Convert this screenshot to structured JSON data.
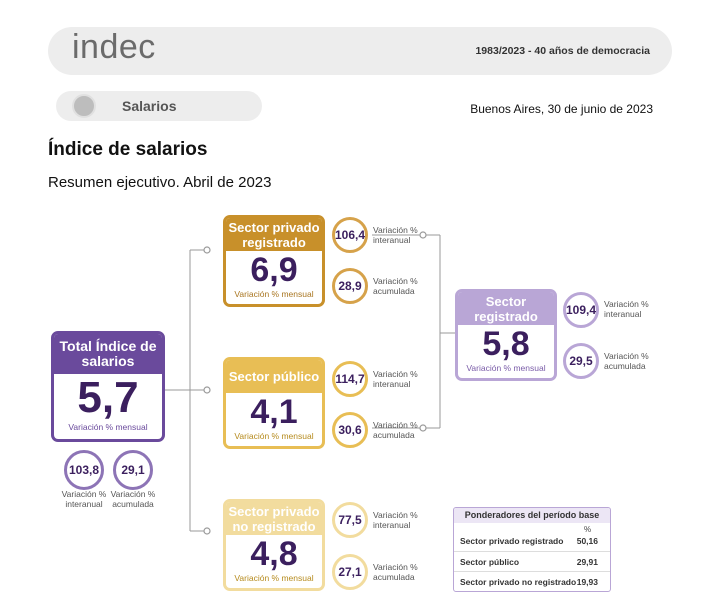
{
  "header": {
    "logo": "indec",
    "motto": "1983/2023 - 40 años de democracia",
    "section": "Salarios",
    "icon": "hands-emblem-icon",
    "date": "Buenos Aires, 30 de junio de 2023"
  },
  "title": "Índice de salarios",
  "subtitle": "Resumen ejecutivo. Abril de 2023",
  "colors": {
    "total": "#6a4a9c",
    "privado_registrado": "#c8902a",
    "publico": "#e8be55",
    "no_registrado": "#f2dc9e",
    "registrado": "#b9a6d6"
  },
  "total": {
    "title": "Total Índice de salarios",
    "value": "5,7",
    "caption": "Variación % mensual",
    "interanual": "103,8",
    "interanual_label": "Variación % interanual",
    "acumulada": "29,1",
    "acumulada_label": "Variación % acumulada"
  },
  "privado_registrado": {
    "title": "Sector privado registrado",
    "value": "6,9",
    "caption": "Variación % mensual",
    "interanual": "106,4",
    "interanual_label": "Variación % interanual",
    "acumulada": "28,9",
    "acumulada_label": "Variación % acumulada"
  },
  "publico": {
    "title": "Sector público",
    "value": "4,1",
    "caption": "Variación % mensual",
    "interanual": "114,7",
    "interanual_label": "Variación % interanual",
    "acumulada": "30,6",
    "acumulada_label": "Variación % acumulada"
  },
  "no_registrado": {
    "title": "Sector privado no registrado",
    "value": "4,8",
    "caption": "Variación % mensual",
    "interanual": "77,5",
    "interanual_label": "Variación % interanual",
    "acumulada": "27,1",
    "acumulada_label": "Variación % acumulada"
  },
  "registrado": {
    "title": "Sector registrado",
    "value": "5,8",
    "caption": "Variación % mensual",
    "interanual": "109,4",
    "interanual_label": "Variación % interanual",
    "acumulada": "29,5",
    "acumulada_label": "Variación % acumulada"
  },
  "ponderadores": {
    "title": "Ponderadores del período base",
    "unit": "%",
    "rows": [
      {
        "label": "Sector privado registrado",
        "value": "50,16"
      },
      {
        "label": "Sector público",
        "value": "29,91"
      },
      {
        "label": "Sector privado no registrado",
        "value": "19,93"
      }
    ]
  }
}
